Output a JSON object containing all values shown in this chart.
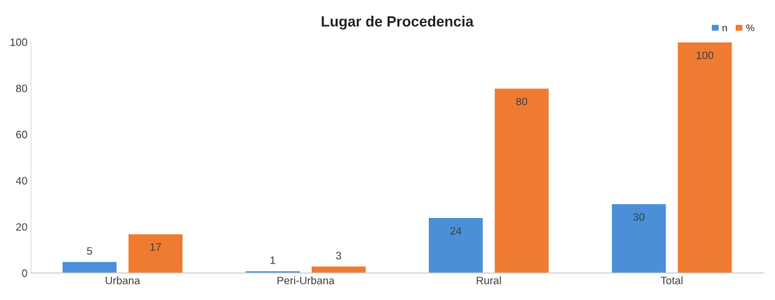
{
  "chart_data": {
    "type": "bar",
    "title": "Lugar de Procedencia",
    "categories": [
      "Urbana",
      "Peri-Urbana",
      "Rural",
      "Total"
    ],
    "series": [
      {
        "name": "n",
        "color": "#4a8fd8",
        "values": [
          5,
          1,
          24,
          30
        ]
      },
      {
        "name": "%",
        "color": "#ee7b30",
        "values": [
          17,
          3,
          80,
          100
        ]
      }
    ],
    "ylim": [
      0,
      100
    ],
    "yticks": [
      0,
      20,
      40,
      60,
      80,
      100
    ],
    "grid": false,
    "legend": "top right",
    "data_labels": true
  }
}
